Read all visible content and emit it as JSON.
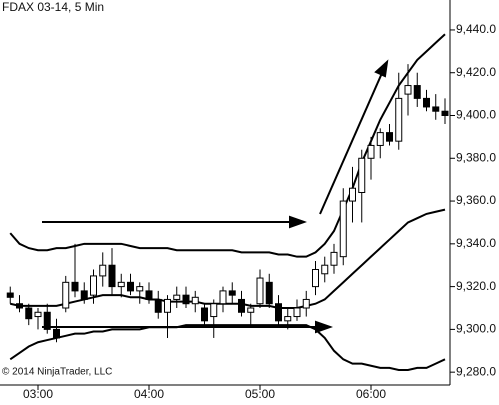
{
  "chart_data": {
    "type": "candlestick",
    "title": "FDAX 03-14, 5 Min",
    "copyright": "© 2014 NinjaTrader, LLC",
    "categories": [
      null,
      null,
      null,
      "03:00",
      null,
      null,
      null,
      null,
      null,
      null,
      null,
      null,
      null,
      null,
      null,
      "04:00",
      null,
      null,
      null,
      null,
      null,
      null,
      null,
      null,
      null,
      null,
      null,
      "05:00",
      null,
      null,
      null,
      null,
      null,
      null,
      null,
      null,
      null,
      null,
      null,
      "06:00",
      null,
      null,
      null,
      null,
      null,
      null,
      null,
      null
    ],
    "open": [
      9317,
      9312,
      9310,
      9306,
      9308,
      9300,
      9310,
      9322,
      9318,
      9316,
      9325,
      9330,
      9320,
      9322,
      9318,
      9318,
      9314,
      9308,
      9314,
      9316,
      9312,
      9310,
      9306,
      9312,
      9318,
      9314,
      9308,
      9312,
      9322,
      9312,
      9304,
      9306,
      9310,
      9320,
      9326,
      9330,
      9334,
      9360,
      9364,
      9380,
      9386,
      9392,
      9388,
      9410,
      9414,
      9408,
      9404,
      9402
    ],
    "high": [
      9320,
      9316,
      9312,
      9310,
      9312,
      9305,
      9325,
      9340,
      9322,
      9328,
      9336,
      9338,
      9326,
      9326,
      9322,
      9322,
      9318,
      9316,
      9320,
      9320,
      9318,
      9312,
      9314,
      9320,
      9322,
      9318,
      9312,
      9328,
      9326,
      9316,
      9310,
      9314,
      9318,
      9332,
      9334,
      9340,
      9366,
      9376,
      9384,
      9390,
      9394,
      9396,
      9420,
      9424,
      9420,
      9412,
      9410,
      9408
    ],
    "low": [
      9312,
      9308,
      9302,
      9300,
      9298,
      9294,
      9308,
      9315,
      9312,
      9312,
      9320,
      9316,
      9315,
      9316,
      9312,
      9312,
      9305,
      9296,
      9310,
      9310,
      9308,
      9302,
      9296,
      9308,
      9312,
      9306,
      9302,
      9310,
      9310,
      9302,
      9300,
      9304,
      9306,
      9316,
      9322,
      9326,
      9330,
      9350,
      9350,
      9370,
      9380,
      9386,
      9384,
      9400,
      9404,
      9402,
      9398,
      9396
    ],
    "close": [
      9315,
      9310,
      9305,
      9308,
      9300,
      9296,
      9322,
      9318,
      9314,
      9325,
      9330,
      9320,
      9322,
      9318,
      9320,
      9314,
      9308,
      9314,
      9316,
      9312,
      9315,
      9304,
      9312,
      9318,
      9316,
      9308,
      9310,
      9324,
      9312,
      9304,
      9306,
      9310,
      9314,
      9328,
      9330,
      9336,
      9360,
      9366,
      9380,
      9386,
      9392,
      9388,
      9408,
      9414,
      9408,
      9404,
      9402,
      9400
    ],
    "up_color": "#ffffff",
    "down_color": "#000000",
    "bands": [
      {
        "color": "#000000",
        "values": [
          9345,
          9340,
          9338,
          9337,
          9337,
          9338,
          9338,
          9339,
          9340,
          9340,
          9340,
          9340,
          9340,
          9339,
          9338,
          9338,
          9338,
          9338,
          9337,
          9337,
          9337,
          9337,
          9337,
          9337,
          9337,
          9336,
          9336,
          9336,
          9336,
          9335,
          9335,
          9334,
          9334,
          9336,
          9340,
          9346,
          9356,
          9366,
          9378,
          9388,
          9398,
          9406,
          9414,
          9420,
          9426,
          9430,
          9434,
          9438
        ]
      },
      {
        "color": "#000000",
        "values": [
          9312,
          9311,
          9311,
          9311,
          9311,
          9311,
          9312,
          9313,
          9314,
          9315,
          9316,
          9316,
          9316,
          9315,
          9315,
          9314,
          9314,
          9313,
          9313,
          9313,
          9313,
          9312,
          9312,
          9312,
          9312,
          9312,
          9311,
          9311,
          9311,
          9310,
          9310,
          9310,
          9311,
          9312,
          9314,
          9318,
          9322,
          9326,
          9330,
          9334,
          9338,
          9342,
          9346,
          9350,
          9352,
          9354,
          9355,
          9356
        ]
      },
      {
        "color": "#000000",
        "values": [
          9286,
          9289,
          9292,
          9294,
          9295,
          9296,
          9297,
          9298,
          9298,
          9299,
          9299,
          9300,
          9300,
          9300,
          9300,
          9301,
          9301,
          9301,
          9301,
          9302,
          9302,
          9302,
          9302,
          9302,
          9302,
          9302,
          9302,
          9302,
          9302,
          9302,
          9302,
          9302,
          9302,
          9300,
          9296,
          9290,
          9286,
          9284,
          9284,
          9283,
          9282,
          9282,
          9281,
          9281,
          9282,
          9282,
          9284,
          9286
        ]
      }
    ],
    "ylim": [
      9274,
      9454
    ],
    "yticks": [
      {
        "value": 9280,
        "label": "9,280.0"
      },
      {
        "value": 9300,
        "label": "9,300.0"
      },
      {
        "value": 9320,
        "label": "9,320.0"
      },
      {
        "value": 9340,
        "label": "9,340.0"
      },
      {
        "value": 9360,
        "label": "9,360.0"
      },
      {
        "value": 9380,
        "label": "9,380.0"
      },
      {
        "value": 9400,
        "label": "9,400.0"
      },
      {
        "value": 9420,
        "label": "9,420.0"
      },
      {
        "value": 9440,
        "label": "9,440.0"
      }
    ]
  }
}
